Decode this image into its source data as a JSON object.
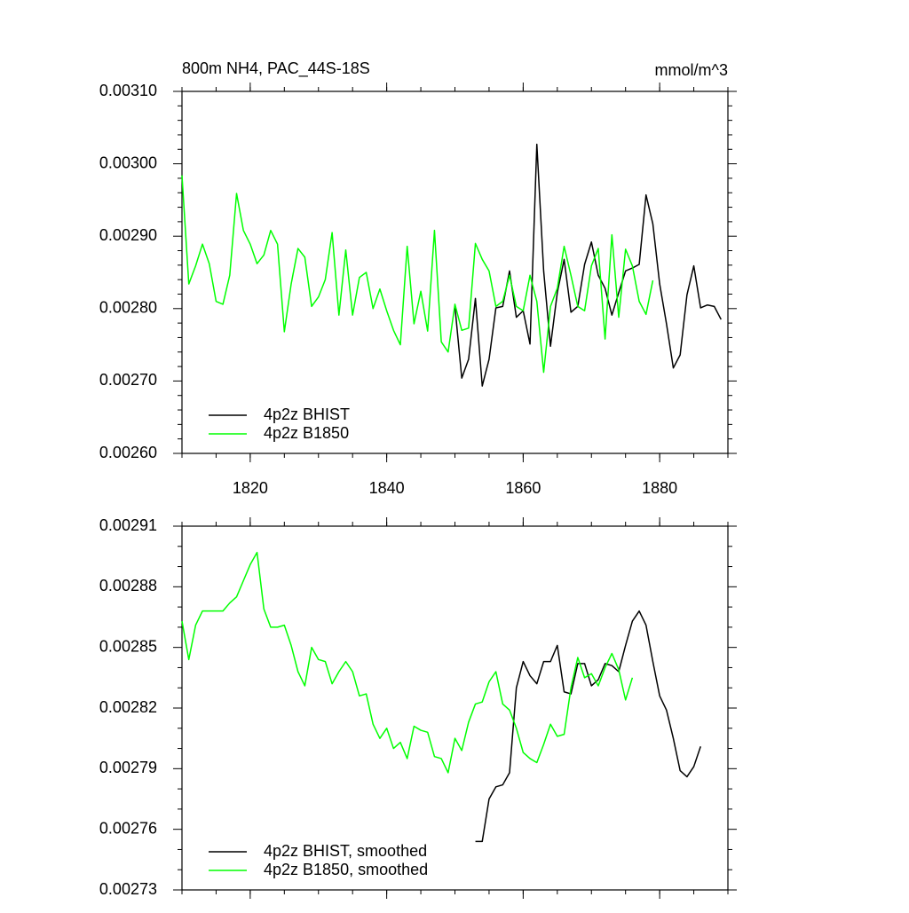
{
  "chart_data": [
    {
      "type": "line",
      "title": "800m NH4, PAC_44S-18S",
      "right_title": "mmol/m^3",
      "xlim": [
        1810,
        1890
      ],
      "xticks": [
        1820,
        1840,
        1860,
        1880
      ],
      "xtick_labels": true,
      "ylim": [
        0.0026,
        0.0031
      ],
      "yticks": [
        {
          "value": 0.0026,
          "label": "0.00260"
        },
        {
          "value": 0.0027,
          "label": "0.00270"
        },
        {
          "value": 0.0028,
          "label": "0.00280"
        },
        {
          "value": 0.0029,
          "label": "0.00290"
        },
        {
          "value": 0.003,
          "label": "0.00300"
        },
        {
          "value": 0.0031,
          "label": "0.00310"
        }
      ],
      "legend": "lower left",
      "series": [
        {
          "name": "4p2z BHIST",
          "color": "#000000",
          "x": [
            1850,
            1851,
            1852,
            1853,
            1854,
            1855,
            1856,
            1857,
            1858,
            1859,
            1860,
            1861,
            1862,
            1863,
            1864,
            1865,
            1866,
            1867,
            1868,
            1869,
            1870,
            1871,
            1872,
            1873,
            1874,
            1875,
            1876,
            1877,
            1878,
            1879,
            1880,
            1881,
            1882,
            1883,
            1884,
            1885,
            1886,
            1887,
            1888,
            1889
          ],
          "values": [
            0.002803,
            0.002704,
            0.00273,
            0.002814,
            0.002693,
            0.00273,
            0.002801,
            0.002803,
            0.002852,
            0.002788,
            0.002797,
            0.002751,
            0.003027,
            0.002852,
            0.002748,
            0.002822,
            0.002868,
            0.002795,
            0.002803,
            0.002861,
            0.002892,
            0.002846,
            0.002828,
            0.002791,
            0.002822,
            0.002852,
            0.002856,
            0.002861,
            0.002957,
            0.002917,
            0.002834,
            0.002779,
            0.002718,
            0.002736,
            0.002819,
            0.002859,
            0.002801,
            0.002805,
            0.002803,
            0.002785
          ]
        },
        {
          "name": "4p2z B1850",
          "color": "#00ff00",
          "x": [
            1810,
            1811,
            1812,
            1813,
            1814,
            1815,
            1816,
            1817,
            1818,
            1819,
            1820,
            1821,
            1822,
            1823,
            1824,
            1825,
            1826,
            1827,
            1828,
            1829,
            1830,
            1831,
            1832,
            1833,
            1834,
            1835,
            1836,
            1837,
            1838,
            1839,
            1840,
            1841,
            1842,
            1843,
            1844,
            1845,
            1846,
            1847,
            1848,
            1849,
            1850,
            1851,
            1852,
            1853,
            1854,
            1855,
            1856,
            1857,
            1858,
            1859,
            1860,
            1861,
            1862,
            1863,
            1864,
            1865,
            1866,
            1867,
            1868,
            1869,
            1870,
            1871,
            1872,
            1873,
            1874,
            1875,
            1876,
            1877,
            1878,
            1879
          ],
          "values": [
            0.002984,
            0.002834,
            0.002859,
            0.002889,
            0.002862,
            0.00281,
            0.002806,
            0.002846,
            0.002959,
            0.002908,
            0.002889,
            0.002862,
            0.002874,
            0.002908,
            0.002889,
            0.002768,
            0.002834,
            0.002883,
            0.002871,
            0.002803,
            0.002816,
            0.00284,
            0.002905,
            0.002791,
            0.002881,
            0.002791,
            0.002843,
            0.00285,
            0.0028,
            0.002827,
            0.002797,
            0.00277,
            0.00275,
            0.002886,
            0.002779,
            0.002824,
            0.002769,
            0.002908,
            0.002754,
            0.00274,
            0.002806,
            0.00277,
            0.002773,
            0.00289,
            0.002868,
            0.002852,
            0.002803,
            0.00281,
            0.002846,
            0.002803,
            0.002797,
            0.002846,
            0.00281,
            0.002712,
            0.002803,
            0.002828,
            0.002886,
            0.002846,
            0.002803,
            0.002797,
            0.002859,
            0.002883,
            0.002758,
            0.002902,
            0.002788,
            0.002882,
            0.002859,
            0.00281,
            0.002792,
            0.002839
          ]
        }
      ]
    },
    {
      "type": "line",
      "xlim": [
        1810,
        1890
      ],
      "xticks": [
        1820,
        1840,
        1860,
        1880
      ],
      "xtick_labels": false,
      "ylim": [
        0.00273,
        0.00291
      ],
      "yticks": [
        0.00273,
        0.00276,
        0.00279,
        0.00282,
        0.00285,
        0.00288,
        0.00291
      ],
      "legend": "lower left",
      "series": [
        {
          "name": "4p2z BHIST, smoothed",
          "color": "#000000",
          "x": [
            1853,
            1854,
            1855,
            1856,
            1857,
            1858,
            1859,
            1860,
            1861,
            1862,
            1863,
            1864,
            1865,
            1866,
            1867,
            1868,
            1869,
            1870,
            1871,
            1872,
            1873,
            1874,
            1875,
            1876,
            1877,
            1878,
            1879,
            1880,
            1881,
            1882,
            1883,
            1884,
            1885,
            1886
          ],
          "values": [
            0.002754,
            0.002754,
            0.002775,
            0.002781,
            0.002782,
            0.002788,
            0.00283,
            0.002843,
            0.002836,
            0.002832,
            0.002843,
            0.002843,
            0.002851,
            0.002828,
            0.002827,
            0.002842,
            0.002842,
            0.002831,
            0.002834,
            0.002842,
            0.002841,
            0.002838,
            0.002851,
            0.002863,
            0.002868,
            0.002861,
            0.002843,
            0.002826,
            0.002819,
            0.002805,
            0.002789,
            0.002786,
            0.002791,
            0.002801
          ]
        },
        {
          "name": "4p2z B1850, smoothed",
          "color": "#00ff00",
          "x": [
            1810,
            1811,
            1812,
            1813,
            1814,
            1815,
            1816,
            1817,
            1818,
            1819,
            1820,
            1821,
            1822,
            1823,
            1824,
            1825,
            1826,
            1827,
            1828,
            1829,
            1830,
            1831,
            1832,
            1833,
            1834,
            1835,
            1836,
            1837,
            1838,
            1839,
            1840,
            1841,
            1842,
            1843,
            1844,
            1845,
            1846,
            1847,
            1848,
            1849,
            1850,
            1851,
            1852,
            1853,
            1854,
            1855,
            1856,
            1857,
            1858,
            1859,
            1860,
            1861,
            1862,
            1863,
            1864,
            1865,
            1866,
            1867,
            1868,
            1869,
            1870,
            1871,
            1872,
            1873,
            1874,
            1875,
            1876
          ],
          "values": [
            0.002863,
            0.002844,
            0.002861,
            0.002868,
            0.002868,
            0.002868,
            0.002868,
            0.002872,
            0.002875,
            0.002883,
            0.002891,
            0.002897,
            0.002869,
            0.00286,
            0.00286,
            0.002861,
            0.002851,
            0.002838,
            0.002831,
            0.00285,
            0.002844,
            0.002843,
            0.002832,
            0.002838,
            0.002843,
            0.002838,
            0.002826,
            0.002827,
            0.002812,
            0.002805,
            0.00281,
            0.0028,
            0.002803,
            0.002795,
            0.002811,
            0.002809,
            0.002808,
            0.002796,
            0.002795,
            0.002788,
            0.002805,
            0.002799,
            0.002813,
            0.002822,
            0.002823,
            0.002833,
            0.002838,
            0.002822,
            0.002819,
            0.00281,
            0.002798,
            0.002795,
            0.002793,
            0.002802,
            0.002812,
            0.002806,
            0.002807,
            0.00283,
            0.002845,
            0.002835,
            0.002837,
            0.002831,
            0.00284,
            0.002847,
            0.002839,
            0.002824,
            0.002835
          ]
        }
      ]
    }
  ]
}
